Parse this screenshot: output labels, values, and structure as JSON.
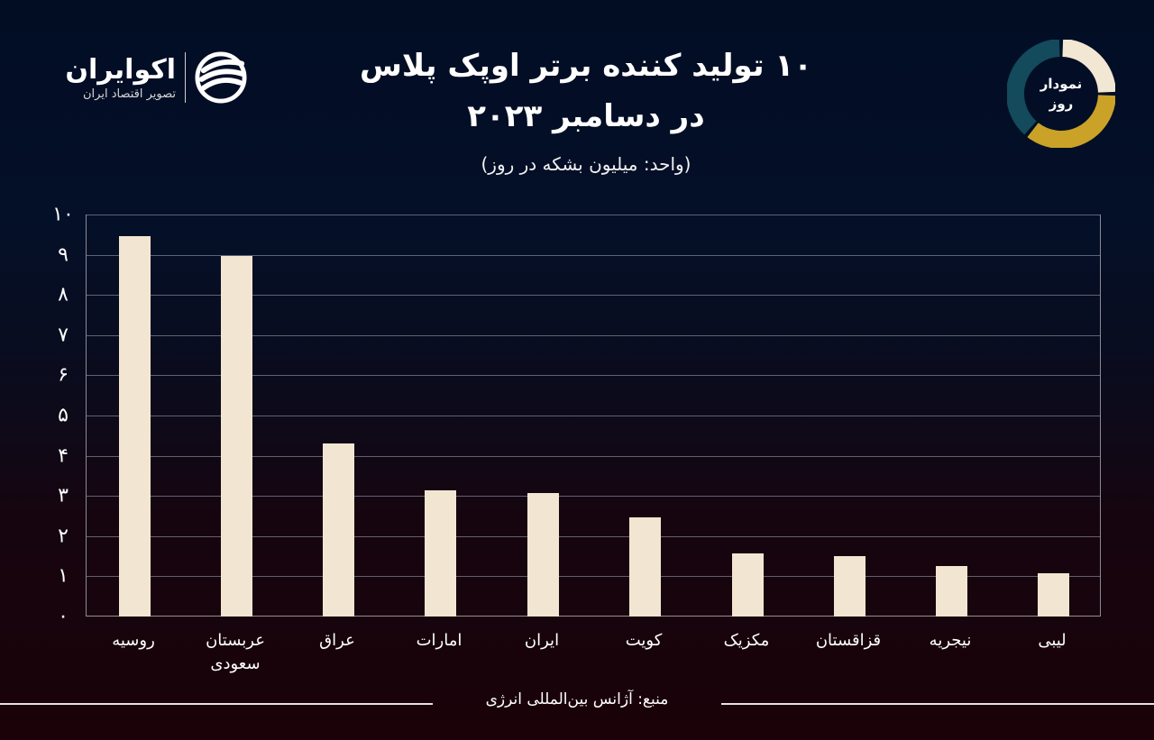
{
  "brand": {
    "name": "اکوایران",
    "tagline": "تصویر اقتصاد ایران",
    "icon": "ecoiran-logo-icon"
  },
  "header": {
    "title_line1": "۱۰ تولید کننده برتر اوپک پلاس",
    "title_line2": "در دسامبر ۲۰۲۳",
    "subtitle": "(واحد: میلیون بشکه در روز)"
  },
  "badge": {
    "line1": "نمودار",
    "line2": "روز",
    "colors": {
      "top_right": "#f1e7d3",
      "bottom": "#c9a227",
      "left": "#134a5c"
    }
  },
  "chart_data": {
    "type": "bar",
    "title": "۱۰ تولید کننده برتر اوپک پلاس در دسامبر ۲۰۲۳",
    "subtitle": "(واحد: میلیون بشکه در روز)",
    "xlabel": "",
    "ylabel": "میلیون بشکه در روز",
    "ylim": [
      0,
      10
    ],
    "yticks": [
      "۰",
      "۱",
      "۲",
      "۳",
      "۴",
      "۵",
      "۶",
      "۷",
      "۸",
      "۹",
      "۱۰"
    ],
    "grid": true,
    "legend": "none",
    "bar_color": "#f2e6d2",
    "categories": [
      "روسیه",
      "عربستان سعودی",
      "عراق",
      "امارات",
      "ایران",
      "کویت",
      "مکزیک",
      "قزاقستان",
      "نیجریه",
      "لیبی"
    ],
    "category_lines": [
      [
        "روسیه"
      ],
      [
        "عربستان",
        "سعودی"
      ],
      [
        "عراق"
      ],
      [
        "امارات"
      ],
      [
        "ایران"
      ],
      [
        "کویت"
      ],
      [
        "مکزیک"
      ],
      [
        "قزاقستان"
      ],
      [
        "نیجریه"
      ],
      [
        "لیبی"
      ]
    ],
    "values": [
      9.46,
      8.97,
      4.3,
      3.14,
      3.07,
      2.47,
      1.57,
      1.5,
      1.26,
      1.08
    ]
  },
  "footer": {
    "source": "منبع: آژانس بین‌المللی انرژی"
  }
}
